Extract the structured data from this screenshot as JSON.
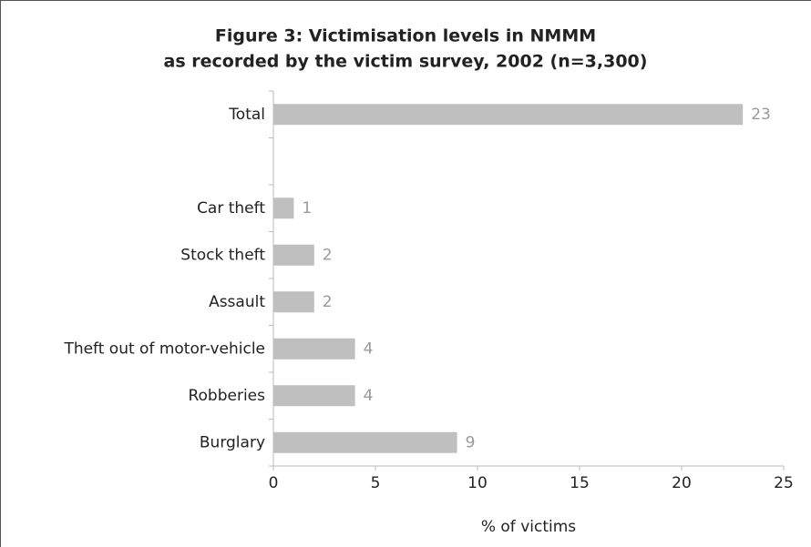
{
  "chart_data": {
    "type": "barh",
    "title": [
      "Figure 3: Victimisation levels in NMMM",
      "as recorded by the victim survey, 2002 (n=3,300)"
    ],
    "categories": [
      "Total",
      null,
      "Car theft",
      "Stock theft",
      "Assault",
      "Theft out of motor-vehicle",
      "Robberies",
      "Burglary"
    ],
    "values": [
      23,
      null,
      1,
      2,
      2,
      4,
      4,
      9
    ],
    "color": "#bfbfbf",
    "xlabel": "% of victims",
    "xlim": [
      0,
      25
    ],
    "xticks": [
      0,
      5,
      10,
      15,
      20,
      25
    ]
  }
}
